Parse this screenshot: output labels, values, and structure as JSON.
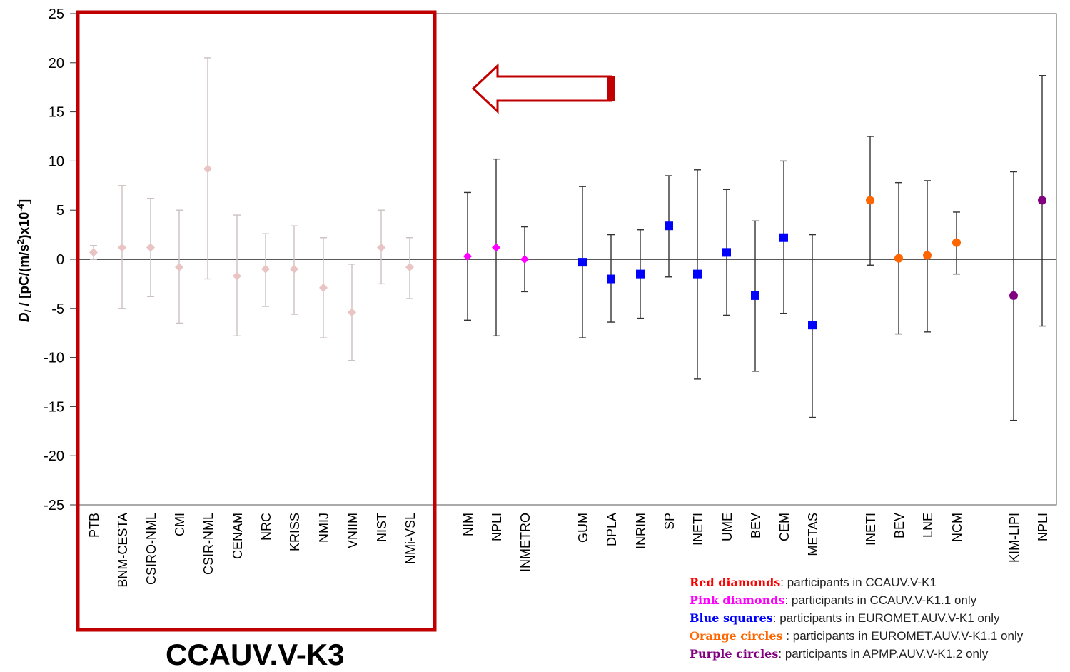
{
  "chart_data": {
    "type": "scatter",
    "subtype": "error-bar",
    "ylabel_main": "D",
    "ylabel_sub": "i",
    "ylabel_rest": " / [pC/(m/s",
    "ylabel_sup1": "2",
    "ylabel_rest2": ")x10",
    "ylabel_sup2": "-4",
    "ylabel_end": "]",
    "ylim": [
      -25,
      25
    ],
    "yticks": [
      "25",
      "20",
      "15",
      "10",
      "5",
      "0",
      "-5",
      "-10",
      "-15",
      "-20",
      "-25"
    ],
    "grid": "horizontal dashed",
    "highlight": {
      "caption": "CCAUV.V-K3",
      "note": "region shaded grey with red border, arrow pointing left"
    },
    "groups": [
      {
        "marker": "diamond",
        "color": "#e8c4c4",
        "faded": true,
        "points": [
          {
            "label": "PTB",
            "y": 0.7,
            "lo": 0.0,
            "hi": 1.4
          },
          {
            "label": "BNM-CESTA",
            "y": 1.2,
            "lo": -5.0,
            "hi": 7.5
          },
          {
            "label": "CSIRO-NML",
            "y": 1.2,
            "lo": -3.8,
            "hi": 6.2
          },
          {
            "label": "CMI",
            "y": -0.8,
            "lo": -6.5,
            "hi": 5.0
          },
          {
            "label": "CSIR-NML",
            "y": 9.2,
            "lo": -2.0,
            "hi": 20.5
          },
          {
            "label": "CENAM",
            "y": -1.7,
            "lo": -7.8,
            "hi": 4.5
          },
          {
            "label": "NRC",
            "y": -1.0,
            "lo": -4.8,
            "hi": 2.6
          },
          {
            "label": "KRISS",
            "y": -1.0,
            "lo": -5.6,
            "hi": 3.4
          },
          {
            "label": "NMIJ",
            "y": -2.9,
            "lo": -8.0,
            "hi": 2.2
          },
          {
            "label": "VNIIM",
            "y": -5.4,
            "lo": -10.3,
            "hi": -0.5
          },
          {
            "label": "NIST",
            "y": 1.2,
            "lo": -2.5,
            "hi": 5.0
          },
          {
            "label": "NMi-VSL",
            "y": -0.8,
            "lo": -4.0,
            "hi": 2.2
          }
        ]
      },
      {
        "marker": "diamond",
        "color": "#ff00ff",
        "points": [
          {
            "label": "NIM",
            "y": 0.3,
            "lo": -6.2,
            "hi": 6.8
          },
          {
            "label": "NPLI",
            "y": 1.2,
            "lo": -7.8,
            "hi": 10.2
          },
          {
            "label": "INMETRO",
            "y": 0.0,
            "lo": -3.3,
            "hi": 3.3
          }
        ]
      },
      {
        "marker": "square",
        "color": "#0000ff",
        "points": [
          {
            "label": "GUM",
            "y": -0.3,
            "lo": -8.0,
            "hi": 7.4
          },
          {
            "label": "DPLA",
            "y": -2.0,
            "lo": -6.4,
            "hi": 2.5
          },
          {
            "label": "INRIM",
            "y": -1.5,
            "lo": -6.0,
            "hi": 3.0
          },
          {
            "label": "SP",
            "y": 3.4,
            "lo": -1.8,
            "hi": 8.5
          },
          {
            "label": "INETI",
            "y": -1.5,
            "lo": -12.2,
            "hi": 9.1
          },
          {
            "label": "UME",
            "y": 0.7,
            "lo": -5.7,
            "hi": 7.1
          },
          {
            "label": "BEV",
            "y": -3.7,
            "lo": -11.4,
            "hi": 3.9
          },
          {
            "label": "CEM",
            "y": 2.2,
            "lo": -5.5,
            "hi": 10.0
          },
          {
            "label": "METAS",
            "y": -6.7,
            "lo": -16.1,
            "hi": 2.5
          }
        ]
      },
      {
        "marker": "circle",
        "color": "#ff6600",
        "points": [
          {
            "label": "INETI",
            "y": 6.0,
            "lo": -0.6,
            "hi": 12.5
          },
          {
            "label": "BEV",
            "y": 0.1,
            "lo": -7.6,
            "hi": 7.8
          },
          {
            "label": "LNE",
            "y": 0.4,
            "lo": -7.4,
            "hi": 8.0
          },
          {
            "label": "NCM",
            "y": 1.7,
            "lo": -1.5,
            "hi": 4.8
          }
        ]
      },
      {
        "marker": "circle",
        "color": "#800080",
        "points": [
          {
            "label": "KIM-LIPI",
            "y": -3.7,
            "lo": -16.4,
            "hi": 8.9
          },
          {
            "label": "NPLI",
            "y": 6.0,
            "lo": -6.8,
            "hi": 18.7
          }
        ]
      }
    ],
    "legend": [
      {
        "key": "Red diamonds",
        "sep": ": ",
        "text": "participants in CCAUV.V-K1",
        "color": "#ff0000"
      },
      {
        "key": "Pink diamonds",
        "sep": ": ",
        "text": "participants in CCAUV.V-K1.1 only",
        "color": "#ff00ff"
      },
      {
        "key": "Blue squares",
        "sep": ": ",
        "text": "participants in EUROMET.AUV.V-K1 only",
        "color": "#0000ff"
      },
      {
        "key": "Orange circles",
        "sep": " : ",
        "text": "participants in EUROMET.AUV.V-K1.1 only",
        "color": "#ff6600"
      },
      {
        "key": "Purple circles",
        "sep": ": ",
        "text": "participants in APMP.AUV.V-K1.2 only",
        "color": "#800080"
      }
    ]
  }
}
